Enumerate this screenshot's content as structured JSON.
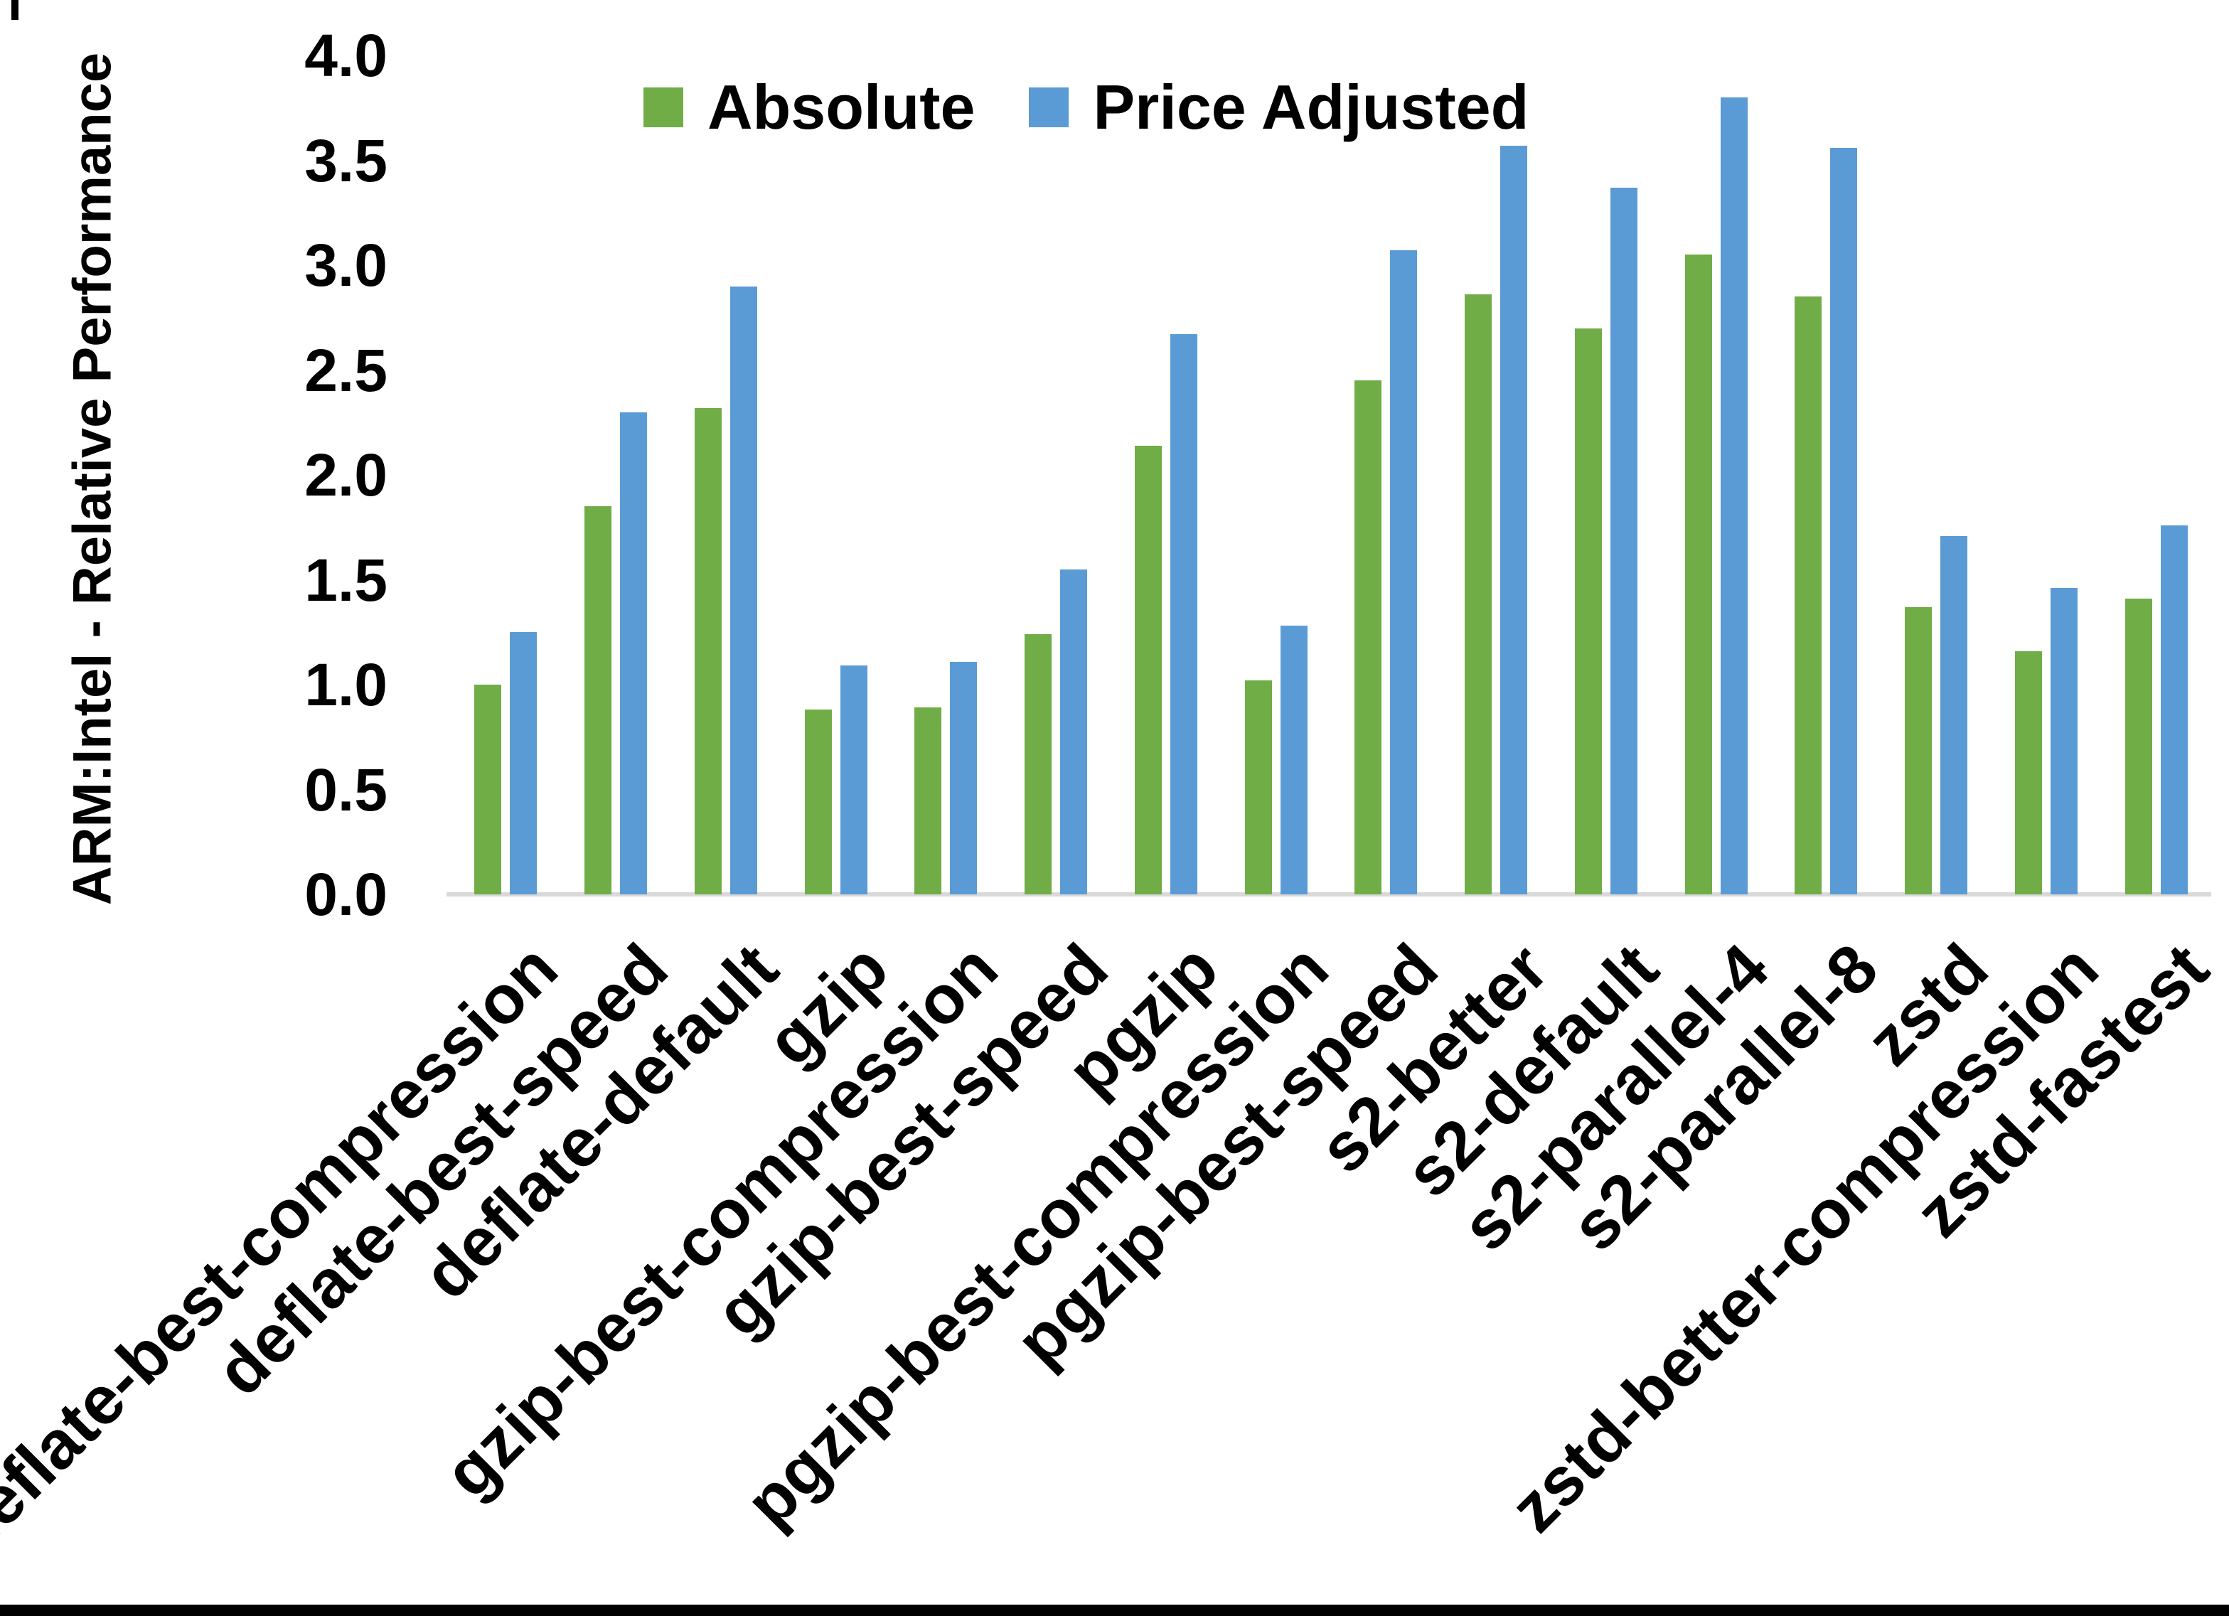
{
  "chart_data": {
    "type": "bar",
    "title": "",
    "xlabel": "",
    "ylabel": "ARM:Intel - Relative Performance",
    "ylim": [
      0,
      4
    ],
    "ytick_step": 0.5,
    "grid": false,
    "legend_position": "top-center-inside",
    "background": "#FFFFFF",
    "axis_line_color": "#D9D9D9",
    "text_color": "#000000",
    "categories": [
      "deflate-best-compression",
      "deflate-best-speed",
      "deflate-default",
      "gzip",
      "gzip-best-compression",
      "gzip-best-speed",
      "pgzip",
      "pgzip-best-compression",
      "pgzip-best-speed",
      "s2-better",
      "s2-default",
      "s2-parallel-4",
      "s2-parallel-8",
      "zstd",
      "zstd-better-compression",
      "zstd-fastest"
    ],
    "series": [
      {
        "name": "Absolute",
        "color": "#70AD47",
        "values": [
          1.0,
          1.85,
          2.32,
          0.88,
          0.89,
          1.24,
          2.14,
          1.02,
          2.45,
          2.86,
          2.7,
          3.05,
          2.85,
          1.37,
          1.16,
          1.41
        ]
      },
      {
        "name": "Price Adjusted",
        "color": "#5B9BD5",
        "values": [
          1.25,
          2.3,
          2.9,
          1.09,
          1.11,
          1.55,
          2.67,
          1.28,
          3.07,
          3.57,
          3.37,
          3.8,
          3.56,
          1.71,
          1.46,
          1.76
        ]
      }
    ]
  }
}
